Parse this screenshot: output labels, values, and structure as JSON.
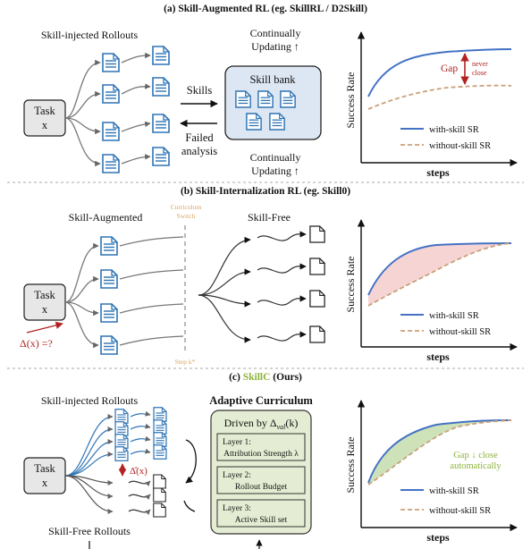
{
  "panel_a": {
    "title": "(a) Skill-Augmented RL (eg. SkillRL / D2Skill)",
    "rollouts_label": "Skill-injected Rollouts",
    "task_line1": "Task",
    "task_line2": "x",
    "skills_label": "Skills",
    "failed_line1": "Failed",
    "failed_line2": "analysis",
    "updating_top_line1": "Continually",
    "updating_top_line2": "Updating ↑",
    "skill_bank": "Skill bank",
    "updating_bottom_line1": "Continually",
    "updating_bottom_line2": "Updating ↑",
    "gap": "Gap",
    "never_line1": "never",
    "never_line2": "close",
    "ylabel": "Success Rate",
    "xlabel": "steps",
    "legend_with": "with-skill SR",
    "legend_without": "without-skill SR"
  },
  "panel_b": {
    "title": "(b) Skill-Internalization RL (eg. Skill0)",
    "skill_augmented": "Skill-Augmented",
    "curriculum_line1": "Curriculum",
    "curriculum_line2": "Switch",
    "skill_free": "Skill-Free",
    "task_line1": "Task",
    "task_line2": "x",
    "delta": "Δ(x) =?",
    "step_k": "Step k*",
    "ylabel": "Success Rate",
    "xlabel": "steps",
    "legend_with": "with-skill SR",
    "legend_without": "without-skill SR"
  },
  "panel_c": {
    "title_prefix": "(c) ",
    "title_name": "SkillC",
    "title_suffix": " (Ours)",
    "rollouts_label": "Skill-injected Rollouts",
    "task_line1": "Task",
    "task_line2": "x",
    "delta_hat": "Δ̂(x)",
    "skill_free_label": "Skill-Free Rollouts",
    "adaptive_title": "Adaptive Curriculum",
    "driven_by": "Driven by Δ",
    "driven_sub": "val",
    "driven_arg": "(k)",
    "layer1_line1": "Layer 1:",
    "layer1_line2": "Attribution Strength λ",
    "layer2_line1": "Layer 2:",
    "layer2_line2": "Rollout Budget",
    "layer3_line1": "Layer 3:",
    "layer3_line2": "Active Skill set",
    "gap_line1": "Gap ↓ close",
    "gap_line2": "automatically",
    "ylabel": "Success Rate",
    "xlabel": "steps",
    "legend_with": "with-skill SR",
    "legend_without": "without-skill SR"
  },
  "colors": {
    "blue_doc": "#2e74b5",
    "with_skill_line": "#4472c4",
    "without_skill_line": "#c9a07a",
    "gap_red": "#b22222",
    "skillc_green": "#8db33a",
    "skill_bank_fill": "#dde6f3",
    "adaptive_fill": "#e4edd3",
    "task_fill": "#e7e7e7",
    "curriculum_orange": "#d9a66b"
  }
}
